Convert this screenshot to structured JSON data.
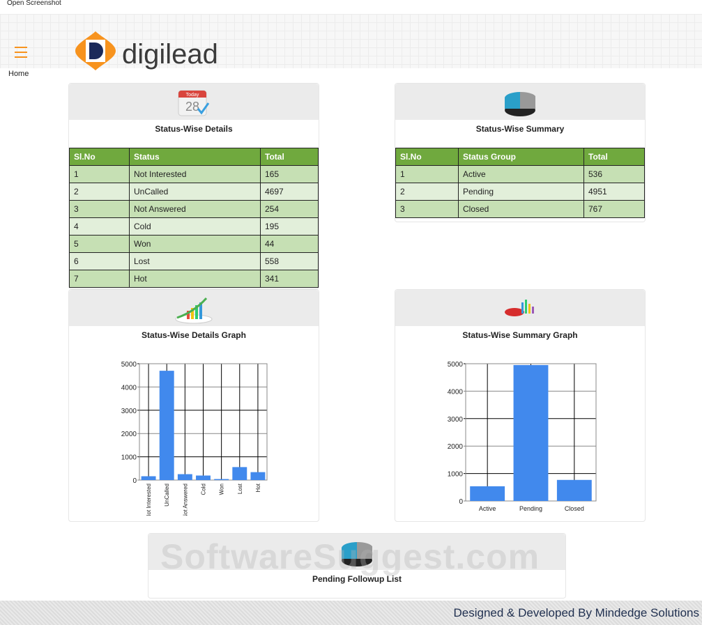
{
  "window": {
    "title": "Open Screenshot"
  },
  "header": {
    "logo_text": "digilead",
    "menu_icon": "hamburger-icon"
  },
  "breadcrumb": "Home",
  "status_details": {
    "title": "Status-Wise Details",
    "icon": "calendar-icon",
    "calendar_label": "Today",
    "calendar_day": "28",
    "columns": [
      "Sl.No",
      "Status",
      "Total"
    ],
    "rows": [
      [
        "1",
        "Not Interested",
        "165"
      ],
      [
        "2",
        "UnCalled",
        "4697"
      ],
      [
        "3",
        "Not Answered",
        "254"
      ],
      [
        "4",
        "Cold",
        "195"
      ],
      [
        "5",
        "Won",
        "44"
      ],
      [
        "6",
        "Lost",
        "558"
      ],
      [
        "7",
        "Hot",
        "341"
      ]
    ]
  },
  "status_summary": {
    "title": "Status-Wise Summary",
    "icon": "pie-chart-icon",
    "columns": [
      "Sl.No",
      "Status Group",
      "Total"
    ],
    "rows": [
      [
        "1",
        "Active",
        "536"
      ],
      [
        "2",
        "Pending",
        "4951"
      ],
      [
        "3",
        "Closed",
        "767"
      ]
    ]
  },
  "details_graph": {
    "title": "Status-Wise Details Graph",
    "icon": "growth-chart-icon"
  },
  "summary_graph": {
    "title": "Status-Wise Summary Graph",
    "icon": "charts-icon"
  },
  "pending": {
    "title": "Pending Followup List",
    "icon": "pie-chart-icon"
  },
  "watermark": "SoftwareSuggest.com",
  "footer": "Designed & Developed By Mindedge Solutions",
  "colors": {
    "bar": "#4189ed",
    "header_green": "#70a93e",
    "row_dark": "#c6e0b4",
    "row_light": "#e2efda",
    "brand_orange": "#f7931e"
  },
  "chart_data": [
    {
      "type": "bar",
      "categories": [
        "Not Interested",
        "UnCalled",
        "Not Answered",
        "Cold",
        "Won",
        "Lost",
        "Hot"
      ],
      "values": [
        165,
        4697,
        254,
        195,
        44,
        558,
        341
      ],
      "ylim": [
        0,
        5000
      ],
      "yticks": [
        "0",
        "1000",
        "2000",
        "3000",
        "4000",
        "5000"
      ],
      "grid": true
    },
    {
      "type": "bar",
      "categories": [
        "Active",
        "Pending",
        "Closed"
      ],
      "values": [
        536,
        4951,
        767
      ],
      "ylim": [
        0,
        5000
      ],
      "yticks": [
        "0",
        "1000",
        "2000",
        "3000",
        "4000",
        "5000"
      ],
      "grid": true
    }
  ]
}
